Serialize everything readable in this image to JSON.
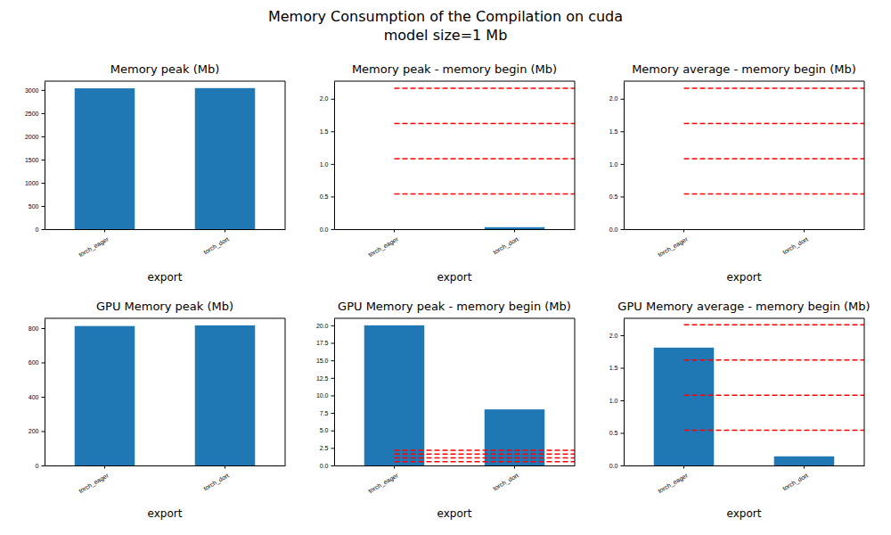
{
  "title": "Memory Consumption of the Compilation on cuda",
  "subtitle": "model size=1 Mb",
  "chart_data": [
    {
      "type": "bar",
      "title": "Memory peak (Mb)",
      "x_label": "export",
      "categories": [
        "torch_eager",
        "torch_dort"
      ],
      "values": [
        3035,
        3040
      ],
      "color": "#1f77b4",
      "ylim": [
        0,
        3190
      ],
      "yticks": [
        0,
        500,
        1000,
        1500,
        2000,
        2500,
        3000
      ]
    },
    {
      "type": "bar",
      "title": "Memory peak - memory begin (Mb)",
      "x_label": "export",
      "categories": [
        "torch_eager",
        "torch_dort"
      ],
      "values": [
        0,
        0.03
      ],
      "color": "#1f77b4",
      "ylim": [
        0,
        2.27
      ],
      "yticks": [
        {
          "value": 0,
          "label": "0.0"
        },
        0.5,
        {
          "value": 1,
          "label": "1.0"
        },
        1.5,
        {
          "value": 2,
          "label": "2.0"
        }
      ],
      "reference_lines": {
        "values": [
          0.54,
          1.08,
          1.62,
          2.16
        ],
        "color": "red",
        "line_style": "dashed"
      }
    },
    {
      "type": "bar",
      "title": "Memory average - memory begin (Mb)",
      "x_label": "export",
      "categories": [
        "torch_eager",
        "torch_dort"
      ],
      "values": [
        0,
        0
      ],
      "color": "#1f77b4",
      "ylim": [
        0,
        2.27
      ],
      "yticks": [
        {
          "value": 0,
          "label": "0.0"
        },
        0.5,
        {
          "value": 1,
          "label": "1.0"
        },
        1.5,
        {
          "value": 2,
          "label": "2.0"
        }
      ],
      "reference_lines": {
        "values": [
          0.54,
          1.08,
          1.62,
          2.16
        ],
        "color": "red",
        "line_style": "dashed"
      }
    },
    {
      "type": "bar",
      "title": "GPU Memory peak (Mb)",
      "x_label": "export",
      "categories": [
        "torch_eager",
        "torch_dort"
      ],
      "values": [
        812,
        816
      ],
      "color": "#1f77b4",
      "ylim": [
        0,
        857
      ],
      "yticks": [
        0,
        200,
        400,
        600,
        800
      ]
    },
    {
      "type": "bar",
      "title": "GPU Memory peak - memory begin (Mb)",
      "x_label": "export",
      "categories": [
        "torch_eager",
        "torch_dort"
      ],
      "values": [
        20,
        8
      ],
      "color": "#1f77b4",
      "ylim": [
        0,
        21
      ],
      "yticks": [
        {
          "value": 0,
          "label": "0.0"
        },
        2.5,
        {
          "value": 5,
          "label": "5.0"
        },
        7.5,
        {
          "value": 10,
          "label": "10.0"
        },
        12.5,
        {
          "value": 15,
          "label": "15.0"
        },
        17.5,
        {
          "value": 20,
          "label": "20.0"
        }
      ],
      "reference_lines": {
        "values": [
          0.54,
          1.08,
          1.62,
          2.16
        ],
        "color": "red",
        "line_style": "dashed"
      }
    },
    {
      "type": "bar",
      "title": "GPU Memory average - memory begin (Mb)",
      "x_label": "export",
      "categories": [
        "torch_eager",
        "torch_dort"
      ],
      "values": [
        1.81,
        0.14
      ],
      "color": "#1f77b4",
      "ylim": [
        0,
        2.26
      ],
      "yticks": [
        {
          "value": 0,
          "label": "0.0"
        },
        0.5,
        {
          "value": 1,
          "label": "1.0"
        },
        1.5,
        {
          "value": 2,
          "label": "2.0"
        }
      ],
      "reference_lines": {
        "values": [
          0.54,
          1.08,
          1.62,
          2.16
        ],
        "color": "red",
        "line_style": "dashed"
      }
    }
  ]
}
